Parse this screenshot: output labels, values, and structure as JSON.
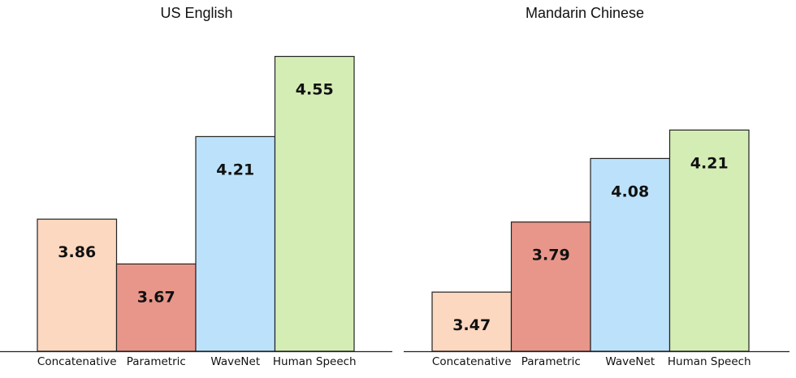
{
  "chart_data": [
    {
      "type": "bar",
      "title": "US English",
      "categories": [
        "Concatenative",
        "Parametric",
        "WaveNet",
        "Human Speech"
      ],
      "values": [
        3.86,
        3.67,
        4.21,
        4.55
      ],
      "colors": [
        "#fdd8c0",
        "#e9968a",
        "#bce2fb",
        "#d4edb5"
      ],
      "ylim": [
        3.3,
        4.6
      ],
      "grid": false,
      "xlabel": "",
      "ylabel": ""
    },
    {
      "type": "bar",
      "title": "Mandarin Chinese",
      "categories": [
        "Concatenative",
        "Parametric",
        "WaveNet",
        "Human Speech"
      ],
      "values": [
        3.47,
        3.79,
        4.08,
        4.21
      ],
      "colors": [
        "#fdd8c0",
        "#e9968a",
        "#bce2fb",
        "#d4edb5"
      ],
      "ylim": [
        3.2,
        4.6
      ],
      "grid": false,
      "xlabel": "",
      "ylabel": ""
    }
  ]
}
